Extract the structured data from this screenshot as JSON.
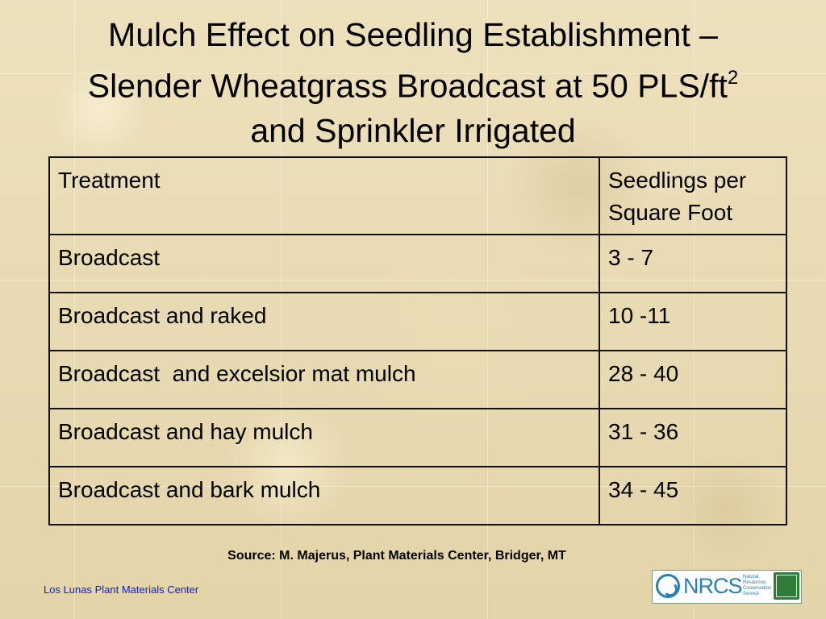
{
  "slide": {
    "title_line1": "Mulch Effect on Seedling Establishment –",
    "title_line2": "Slender Wheatgrass Broadcast at 50 PLS/ft",
    "title_sup": "2",
    "title_line3": "and Sprinkler Irrigated"
  },
  "table": {
    "headers": [
      "Treatment",
      "Seedlings per\nSquare Foot"
    ],
    "rows": [
      {
        "treatment": "Broadcast",
        "seedlings": "3 - 7"
      },
      {
        "treatment": "Broadcast and raked",
        "seedlings": "10 -11"
      },
      {
        "treatment": "Broadcast  and excelsior mat mulch",
        "seedlings": "28 - 40"
      },
      {
        "treatment": "Broadcast and hay mulch",
        "seedlings": "31 - 36"
      },
      {
        "treatment": "Broadcast and bark mulch",
        "seedlings": "34 - 45"
      }
    ]
  },
  "source": "Source: M. Majerus, Plant Materials Center, Bridger, MT",
  "footer": "Los Lunas Plant Materials Center",
  "logo": {
    "wordmark": "NRCS",
    "agency_text": "Natural Resources Conservation Service",
    "icon": "nrcs-water-drop-icon",
    "badge": "plant-materials-program-badge",
    "accent_color": "#2a7fb8",
    "badge_color": "#2f7d3a"
  }
}
